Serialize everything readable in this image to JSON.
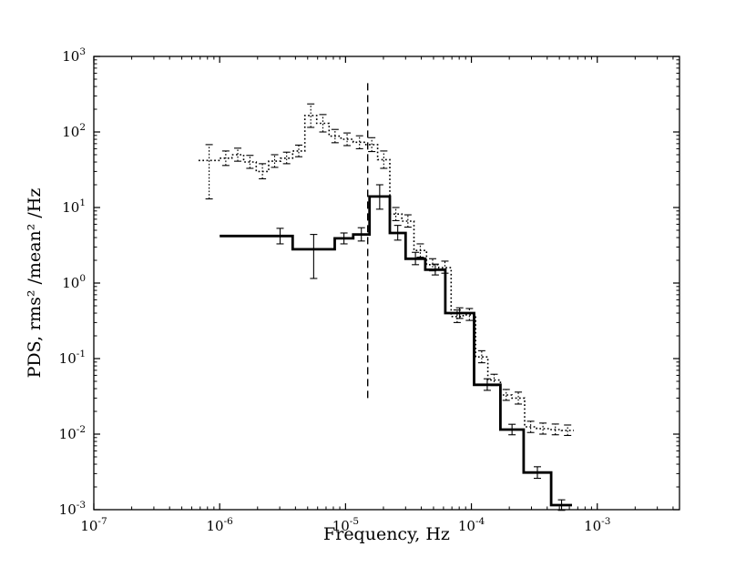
{
  "figure": {
    "background": "#ffffff",
    "frame_color": "#000000"
  },
  "chart_data": {
    "type": "line",
    "subtype": "log-log step power-density-spectrum with error bars",
    "title": "",
    "xlabel": "Frequency, Hz",
    "ylabel": "PDS, rms² /mean² /Hz",
    "grid": false,
    "legend": "none",
    "xlim": [
      1e-07,
      0.0045
    ],
    "ylim": [
      0.001,
      1000.0
    ],
    "x_ticks": [
      {
        "v": 1e-07,
        "label": "10^-7"
      },
      {
        "v": 1e-06,
        "label": "10^-6"
      },
      {
        "v": 1e-05,
        "label": "10^-5"
      },
      {
        "v": 0.0001,
        "label": "10^-4"
      },
      {
        "v": 0.001,
        "label": "10^-3"
      }
    ],
    "y_ticks": [
      {
        "v": 1000.0,
        "label": "10^3"
      },
      {
        "v": 100.0,
        "label": "10^2"
      },
      {
        "v": 10.0,
        "label": "10^1"
      },
      {
        "v": 1.0,
        "label": "10^0"
      },
      {
        "v": 0.1,
        "label": "10^-1"
      },
      {
        "v": 0.01,
        "label": "10^-2"
      },
      {
        "v": 0.001,
        "label": "10^-3"
      }
    ],
    "vline": {
      "x": 1.5e-05,
      "y_from": 0.03,
      "y_to": 500,
      "style": "dashed",
      "color": "#000000"
    },
    "series": [
      {
        "name": "dotted-pds",
        "style": "dotted",
        "line_width": 1.6,
        "color": "#000000",
        "bins_format": [
          "x_lo",
          "x_hi",
          "y",
          "err_lo",
          "err_hi"
        ],
        "bins": [
          [
            6.8e-07,
            1e-06,
            42,
            13,
            68
          ],
          [
            1e-06,
            1.25e-06,
            45,
            36,
            56
          ],
          [
            1.25e-06,
            1.55e-06,
            50,
            41,
            61
          ],
          [
            1.55e-06,
            1.95e-06,
            40,
            33,
            49
          ],
          [
            1.95e-06,
            2.45e-06,
            30,
            24,
            38
          ],
          [
            2.45e-06,
            3.05e-06,
            41,
            34,
            50
          ],
          [
            3.05e-06,
            3.8e-06,
            45,
            38,
            54
          ],
          [
            3.8e-06,
            4.75e-06,
            56,
            47,
            67
          ],
          [
            4.75e-06,
            5.9e-06,
            165,
            115,
            235
          ],
          [
            5.9e-06,
            7.4e-06,
            130,
            100,
            170
          ],
          [
            7.4e-06,
            9.2e-06,
            88,
            72,
            108
          ],
          [
            9.2e-06,
            1.15e-05,
            80,
            66,
            97
          ],
          [
            1.15e-05,
            1.45e-05,
            73,
            60,
            89
          ],
          [
            1.45e-05,
            1.8e-05,
            68,
            55,
            84
          ],
          [
            1.8e-05,
            2.25e-05,
            43,
            33,
            56
          ],
          [
            2.25e-05,
            2.8e-05,
            8.2,
            6.7,
            10
          ],
          [
            2.8e-05,
            3.5e-05,
            6.6,
            5.5,
            8.0
          ],
          [
            3.5e-05,
            4.4e-05,
            2.7,
            2.2,
            3.3
          ],
          [
            4.4e-05,
            5.5e-05,
            1.75,
            1.45,
            2.1
          ],
          [
            5.5e-05,
            6.9e-05,
            1.6,
            1.35,
            1.95
          ],
          [
            6.9e-05,
            8.6e-05,
            0.36,
            0.3,
            0.44
          ],
          [
            8.6e-05,
            0.000108,
            0.38,
            0.32,
            0.46
          ],
          [
            0.000108,
            0.000135,
            0.105,
            0.088,
            0.127
          ],
          [
            0.000135,
            0.00017,
            0.052,
            0.044,
            0.062
          ],
          [
            0.00017,
            0.00021,
            0.033,
            0.028,
            0.039
          ],
          [
            0.00021,
            0.000265,
            0.03,
            0.025,
            0.036
          ],
          [
            0.000265,
            0.00033,
            0.0125,
            0.0105,
            0.0148
          ],
          [
            0.00033,
            0.000415,
            0.0118,
            0.01,
            0.014
          ],
          [
            0.000415,
            0.00052,
            0.0115,
            0.0098,
            0.0136
          ],
          [
            0.00052,
            0.00065,
            0.0112,
            0.0096,
            0.0132
          ]
        ]
      },
      {
        "name": "solid-pds",
        "style": "solid",
        "line_width": 2.8,
        "color": "#000000",
        "bins_format": [
          "x_lo",
          "x_hi",
          "y",
          "err_lo",
          "err_hi"
        ],
        "bins": [
          [
            1e-06,
            2.4e-06,
            4.2,
            null,
            null
          ],
          [
            2.4e-06,
            3.8e-06,
            4.2,
            3.3,
            5.3
          ],
          [
            3.8e-06,
            8.2e-06,
            2.8,
            1.15,
            4.4
          ],
          [
            8.2e-06,
            1.15e-05,
            3.9,
            3.3,
            4.6
          ],
          [
            1.15e-05,
            1.55e-05,
            4.4,
            3.6,
            5.4
          ],
          [
            1.55e-05,
            2.25e-05,
            14,
            9.5,
            20
          ],
          [
            2.25e-05,
            3e-05,
            4.6,
            3.7,
            5.8
          ],
          [
            3e-05,
            4.3e-05,
            2.1,
            1.75,
            2.55
          ],
          [
            4.3e-05,
            6.2e-05,
            1.5,
            1.28,
            1.78
          ],
          [
            6.2e-05,
            0.000105,
            0.4,
            0.34,
            0.47
          ],
          [
            0.000105,
            0.00017,
            0.045,
            0.038,
            0.054
          ],
          [
            0.00017,
            0.00026,
            0.0115,
            0.0098,
            0.0135
          ],
          [
            0.00026,
            0.00043,
            0.0031,
            0.0026,
            0.0037
          ],
          [
            0.00043,
            0.00063,
            0.00115,
            0.00098,
            0.00135
          ]
        ]
      }
    ]
  }
}
